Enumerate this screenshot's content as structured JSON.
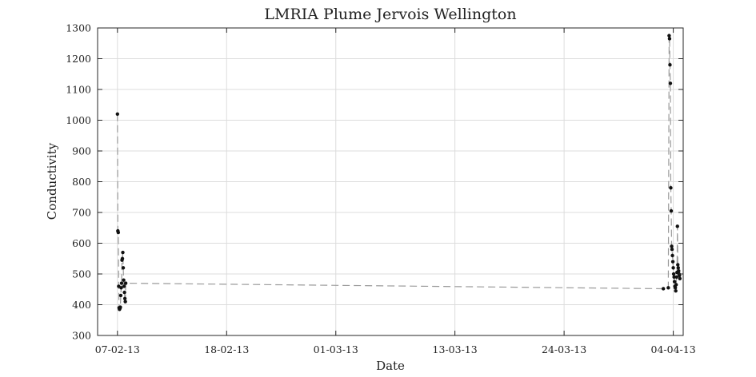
{
  "chart_data": {
    "type": "scatter",
    "title": "LMRIA Plume Jervois Wellington",
    "xlabel": "Date",
    "ylabel": "Conductivity",
    "ylim": [
      300,
      1300
    ],
    "xlim": [
      "2013-02-05",
      "2013-04-05"
    ],
    "grid": true,
    "x_tick_labels": [
      "07-02-13",
      "18-02-13",
      "01-03-13",
      "13-03-13",
      "24-03-13",
      "04-04-13"
    ],
    "x_tick_dates": [
      "2013-02-07",
      "2013-02-18",
      "2013-03-01",
      "2013-03-13",
      "2013-03-24",
      "2013-04-04"
    ],
    "y_tick_labels": [
      "300",
      "400",
      "500",
      "600",
      "700",
      "800",
      "900",
      "1000",
      "1100",
      "1200",
      "1300"
    ],
    "y_tick_values": [
      300,
      400,
      500,
      600,
      700,
      800,
      900,
      1000,
      1100,
      1200,
      1300
    ],
    "line_color": "#9a9a9a",
    "point_color": "#111111",
    "series": [
      {
        "x": [
          "2013-02-07T00:00",
          "2013-02-07T01:00",
          "2013-02-07T02:00",
          "2013-02-07T03:00",
          "2013-02-07T04:00",
          "2013-02-07T05:00",
          "2013-02-07T06:00",
          "2013-02-07T07:00",
          "2013-02-07T08:00",
          "2013-02-07T09:00",
          "2013-02-07T10:00",
          "2013-02-07T11:00",
          "2013-02-07T12:00",
          "2013-02-07T13:00",
          "2013-02-07T14:00",
          "2013-02-07T15:00",
          "2013-02-07T16:00",
          "2013-02-07T17:00",
          "2013-02-07T18:00",
          "2013-02-07T19:00",
          "2013-02-07T20:00",
          "2013-04-03T00:00",
          "2013-04-03T12:00",
          "2013-04-03T14:00",
          "2013-04-03T15:00",
          "2013-04-03T16:00",
          "2013-04-03T17:00",
          "2013-04-03T18:00",
          "2013-04-03T19:00",
          "2013-04-03T20:00",
          "2013-04-03T21:00",
          "2013-04-03T22:00",
          "2013-04-03T23:00",
          "2013-04-04T00:00",
          "2013-04-04T01:00",
          "2013-04-04T02:00",
          "2013-04-04T03:00",
          "2013-04-04T04:00",
          "2013-04-04T05:00",
          "2013-04-04T06:00",
          "2013-04-04T07:00",
          "2013-04-04T08:00",
          "2013-04-04T09:00",
          "2013-04-04T10:00",
          "2013-04-04T11:00",
          "2013-04-04T12:00",
          "2013-04-04T13:00",
          "2013-04-04T14:00",
          "2013-04-04T15:00",
          "2013-04-04T16:00"
        ],
        "y": [
          1020,
          640,
          635,
          460,
          390,
          385,
          388,
          392,
          430,
          455,
          470,
          545,
          550,
          570,
          520,
          480,
          460,
          440,
          420,
          410,
          470,
          452,
          455,
          1275,
          1265,
          1180,
          1120,
          780,
          705,
          590,
          580,
          560,
          540,
          520,
          500,
          490,
          475,
          460,
          455,
          445,
          465,
          490,
          505,
          655,
          530,
          520,
          510,
          500,
          495,
          485
        ]
      }
    ]
  }
}
